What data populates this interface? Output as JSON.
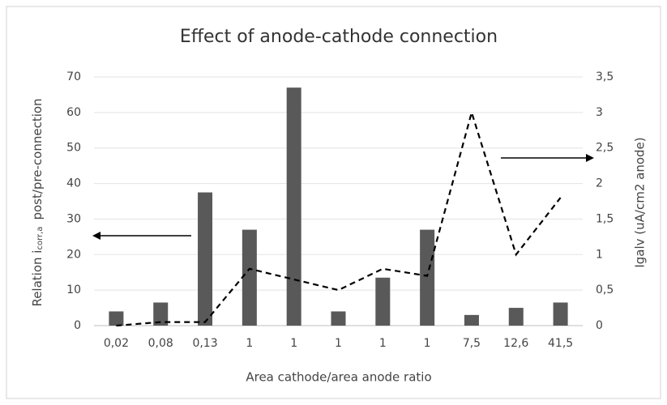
{
  "chart_data": {
    "type": "bar_line",
    "title": "Effect of anode-cathode connection",
    "xlabel": "Area cathode/area anode ratio",
    "ylabel_parts": [
      "Relation i",
      "corr,a",
      "post/pre-connection"
    ],
    "y2label": "Igalv (uA/cm2 anode)",
    "categories": [
      "0,02",
      "0,08",
      "0,13",
      "1",
      "1",
      "1",
      "1",
      "1",
      "7,5",
      "12,6",
      "41,5"
    ],
    "series": [
      {
        "name": "Relation icorr,a post/pre-connection",
        "kind": "bar",
        "color": "#595959",
        "values": [
          4,
          6.5,
          37.5,
          27,
          67,
          4,
          13.5,
          27,
          3,
          5,
          6.5
        ]
      },
      {
        "name": "Igalv",
        "kind": "line",
        "axis": "y2",
        "color": "#000000",
        "dashed": true,
        "values": [
          0,
          0.05,
          0.05,
          0.8,
          0.65,
          0.5,
          0.8,
          0.7,
          3.0,
          1.0,
          1.8
        ]
      }
    ],
    "ylim": [
      0,
      70
    ],
    "yticks": [
      0,
      10,
      20,
      30,
      40,
      50,
      60,
      70
    ],
    "y2lim": [
      0,
      3.5
    ],
    "y2ticks": [
      0,
      {
        "value": 0.5,
        "label": "0,5"
      },
      1,
      {
        "value": 1.5,
        "label": "1,5"
      },
      2,
      {
        "value": 2.5,
        "label": "2,5"
      },
      3,
      {
        "value": 3.5,
        "label": "3,5"
      }
    ],
    "grid": true
  }
}
